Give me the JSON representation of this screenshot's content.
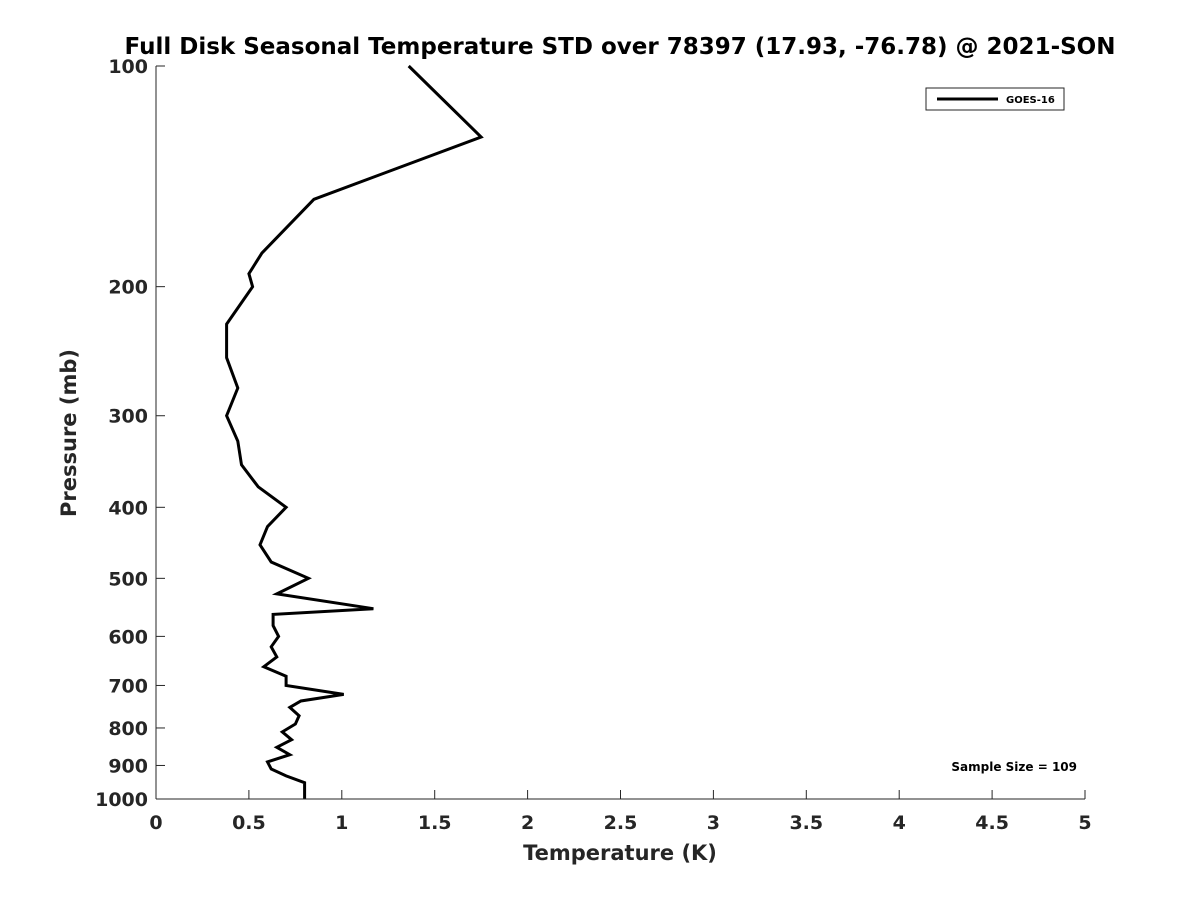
{
  "chart_data": {
    "type": "line",
    "title": "Full Disk Seasonal Temperature STD over 78397 (17.93, -76.78) @ 2021-SON",
    "xlabel": "Temperature (K)",
    "ylabel": "Pressure (mb)",
    "xlim": [
      0,
      5
    ],
    "ylim": [
      100,
      1000
    ],
    "y_scale": "log",
    "y_direction": "reversed",
    "grid": false,
    "x_ticks": [
      0,
      0.5,
      1,
      1.5,
      2,
      2.5,
      3,
      3.5,
      4,
      4.5,
      5
    ],
    "x_tick_labels": [
      "0",
      "0.5",
      "1",
      "1.5",
      "2",
      "2.5",
      "3",
      "3.5",
      "4",
      "4.5",
      "5"
    ],
    "y_ticks": [
      100,
      200,
      300,
      400,
      500,
      600,
      700,
      800,
      900,
      1000
    ],
    "y_tick_labels": [
      "100",
      "200",
      "300",
      "400",
      "500",
      "600",
      "700",
      "800",
      "900",
      "1000"
    ],
    "legend": {
      "position": "top-right",
      "entries": [
        "GOES-16"
      ]
    },
    "annotation": "Sample Size = 109",
    "series": [
      {
        "name": "GOES-16",
        "color": "#000000",
        "points": [
          [
            1.36,
            100
          ],
          [
            1.75,
            125
          ],
          [
            0.85,
            152
          ],
          [
            0.57,
            180
          ],
          [
            0.5,
            192
          ],
          [
            0.52,
            200
          ],
          [
            0.38,
            225
          ],
          [
            0.38,
            250
          ],
          [
            0.44,
            275
          ],
          [
            0.38,
            300
          ],
          [
            0.44,
            325
          ],
          [
            0.46,
            350
          ],
          [
            0.55,
            375
          ],
          [
            0.7,
            400
          ],
          [
            0.6,
            425
          ],
          [
            0.56,
            450
          ],
          [
            0.62,
            475
          ],
          [
            0.82,
            500
          ],
          [
            0.65,
            525
          ],
          [
            1.17,
            550
          ],
          [
            0.63,
            560
          ],
          [
            0.63,
            580
          ],
          [
            0.66,
            600
          ],
          [
            0.62,
            620
          ],
          [
            0.65,
            640
          ],
          [
            0.58,
            660
          ],
          [
            0.7,
            680
          ],
          [
            0.7,
            700
          ],
          [
            1.01,
            720
          ],
          [
            0.78,
            735
          ],
          [
            0.72,
            750
          ],
          [
            0.77,
            770
          ],
          [
            0.75,
            790
          ],
          [
            0.68,
            810
          ],
          [
            0.73,
            830
          ],
          [
            0.65,
            850
          ],
          [
            0.72,
            870
          ],
          [
            0.6,
            890
          ],
          [
            0.62,
            910
          ],
          [
            0.7,
            930
          ],
          [
            0.8,
            950
          ],
          [
            0.8,
            975
          ],
          [
            0.8,
            1000
          ]
        ]
      }
    ]
  }
}
